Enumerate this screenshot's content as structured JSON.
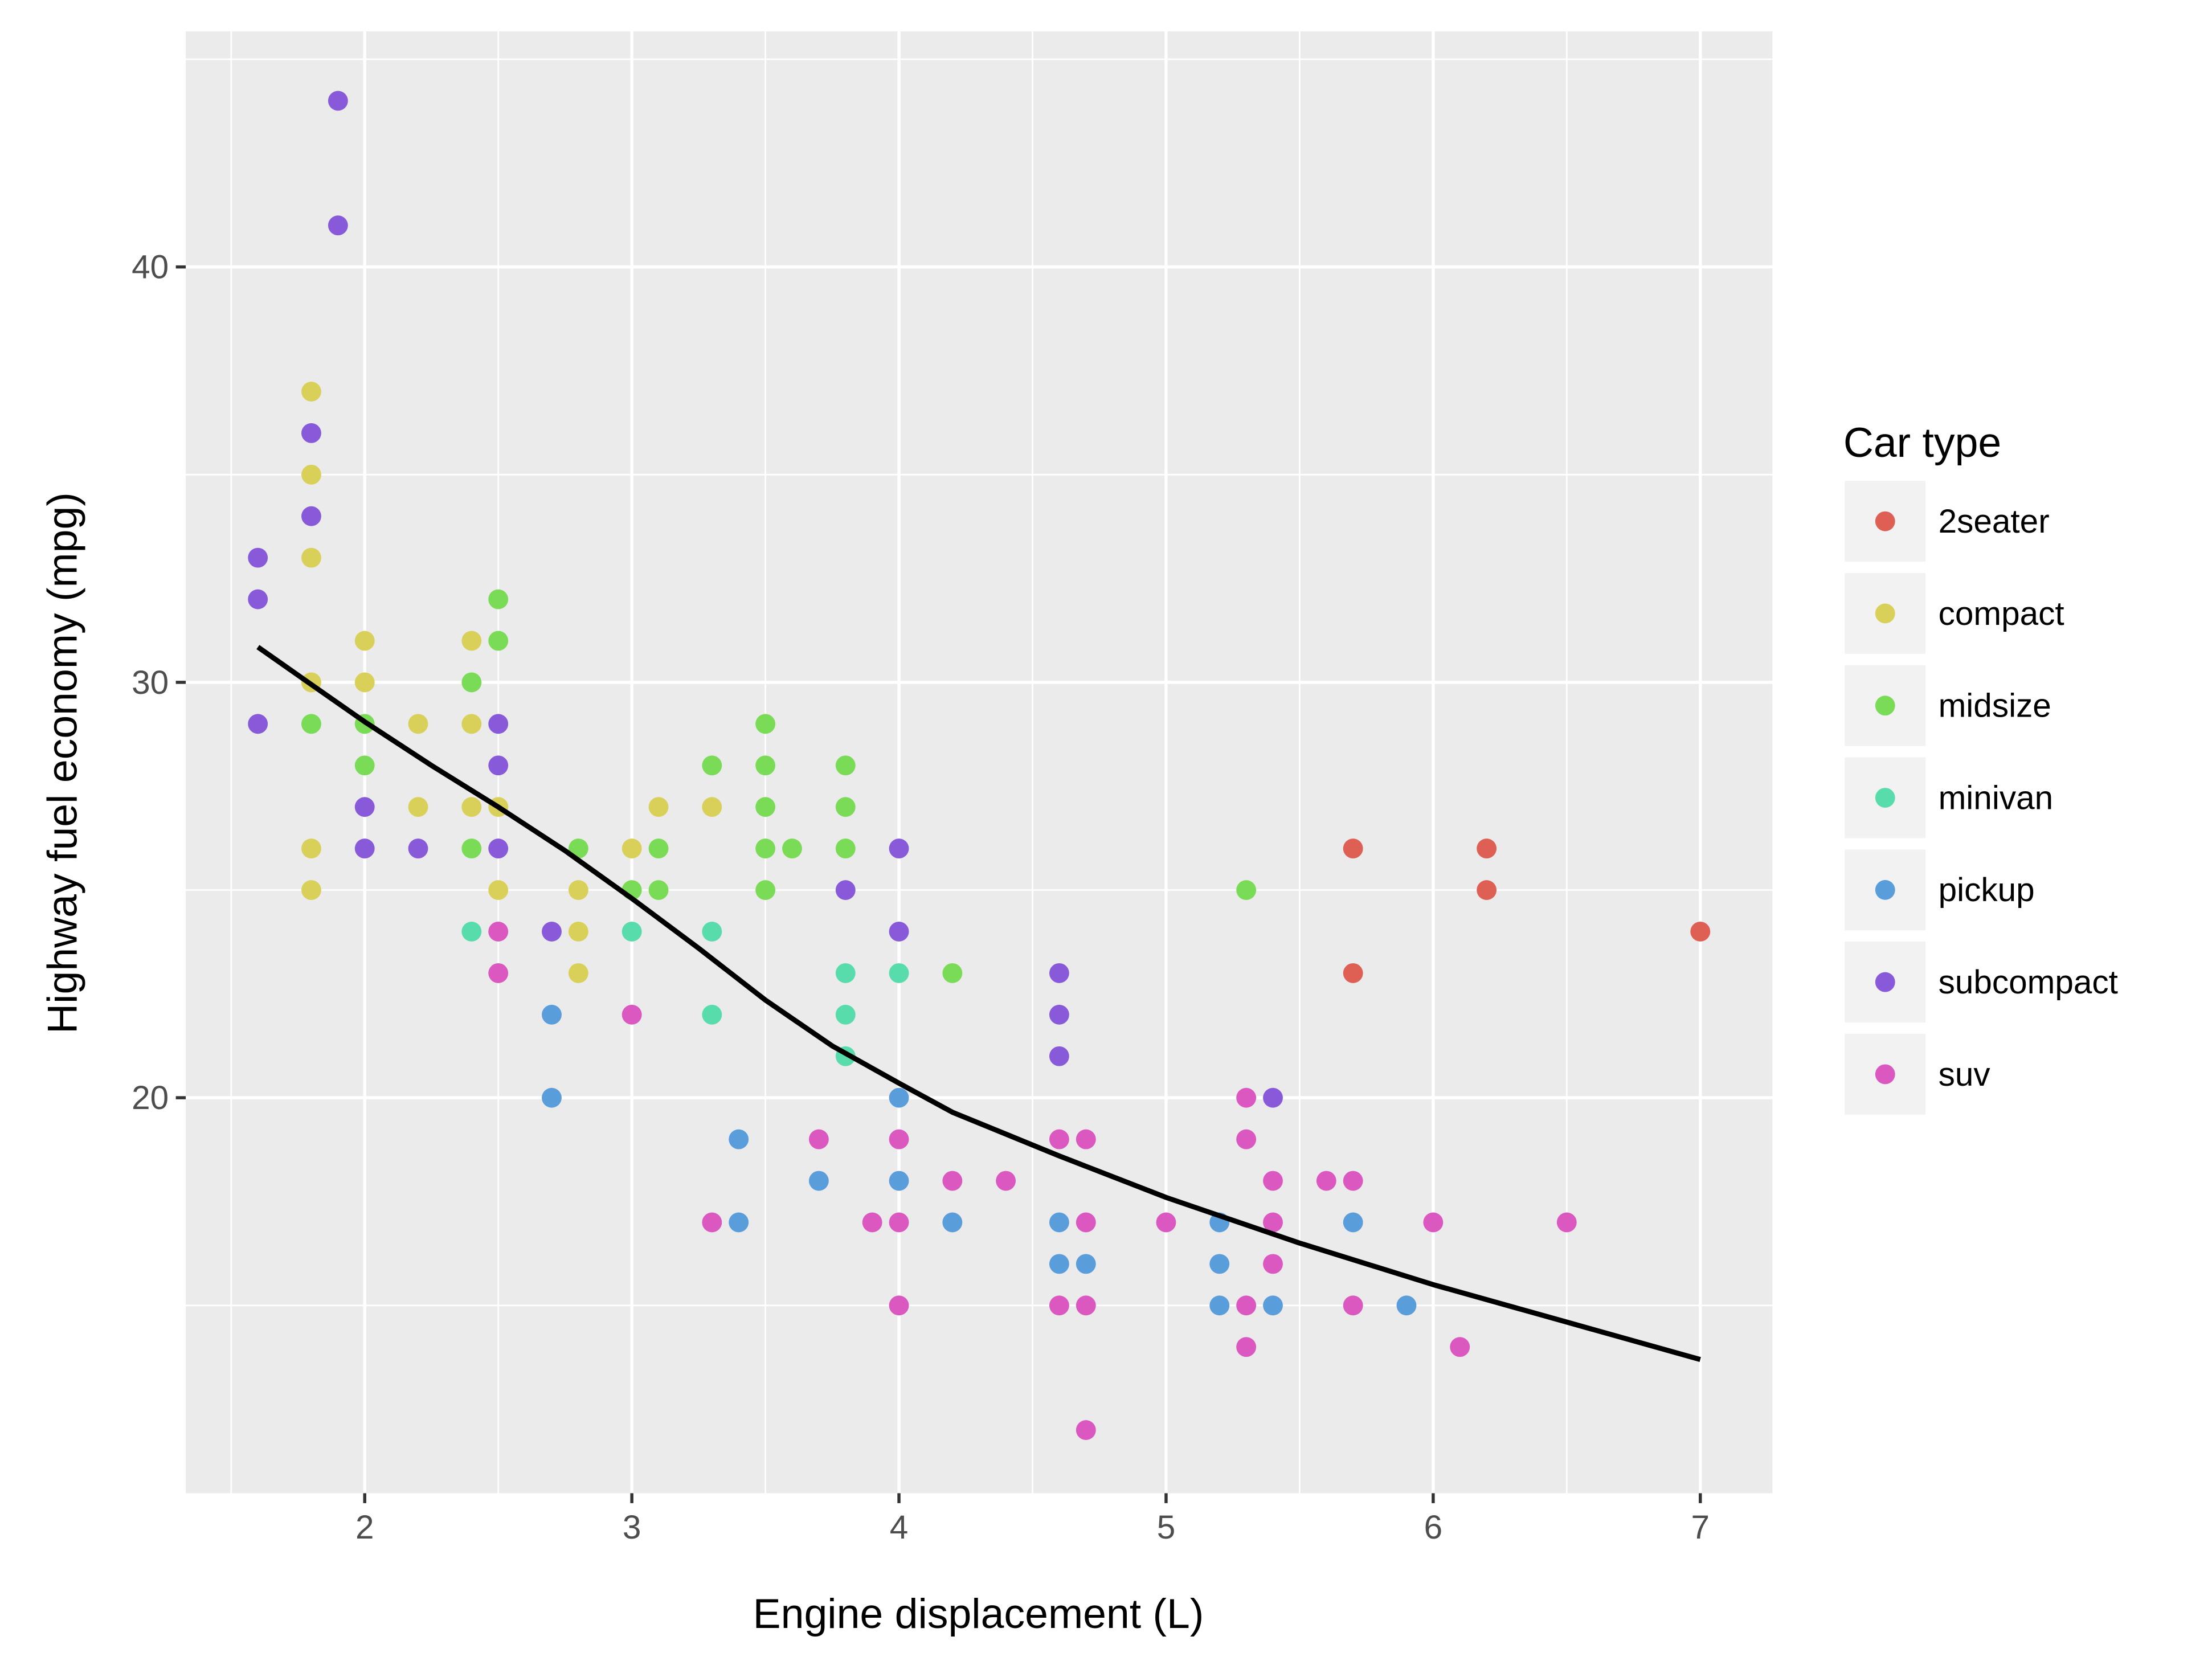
{
  "chart_data": {
    "type": "scatter",
    "title": "",
    "xlabel": "Engine displacement (L)",
    "ylabel": "Highway fuel economy (mpg)",
    "xlim": [
      1.33,
      7.27
    ],
    "ylim": [
      10.48,
      45.67
    ],
    "x_ticks": [
      2,
      3,
      4,
      5,
      6,
      7
    ],
    "y_ticks": [
      20,
      30,
      40
    ],
    "x_tick_labels": [
      "2",
      "3",
      "4",
      "5",
      "6",
      "7"
    ],
    "y_tick_labels": [
      "20",
      "30",
      "40"
    ],
    "grid": true,
    "legend": {
      "title": "Car type",
      "placement": "right",
      "entries": [
        "2seater",
        "compact",
        "midsize",
        "minivan",
        "pickup",
        "subcompact",
        "suv"
      ]
    },
    "colors": {
      "2seater": "#DE6055",
      "compact": "#D9D05A",
      "midsize": "#79DB56",
      "minivan": "#58DCAB",
      "pickup": "#5A9DDB",
      "subcompact": "#885AD9",
      "suv": "#DA58C0"
    },
    "series": [
      {
        "name": "2seater",
        "points": [
          [
            5.7,
            26
          ],
          [
            5.7,
            23
          ],
          [
            6.2,
            26
          ],
          [
            6.2,
            25
          ],
          [
            7.0,
            24
          ]
        ]
      },
      {
        "name": "compact",
        "points": [
          [
            1.8,
            37
          ],
          [
            1.8,
            35
          ],
          [
            1.8,
            33
          ],
          [
            1.8,
            30
          ],
          [
            2.0,
            31
          ],
          [
            2.0,
            30
          ],
          [
            2.2,
            29
          ],
          [
            1.8,
            26
          ],
          [
            1.8,
            25
          ],
          [
            2.2,
            27
          ],
          [
            2.4,
            31
          ],
          [
            2.4,
            29
          ],
          [
            2.4,
            27
          ],
          [
            2.5,
            27
          ],
          [
            2.5,
            25
          ],
          [
            2.8,
            25
          ],
          [
            2.8,
            24
          ],
          [
            2.8,
            23
          ],
          [
            3.0,
            26
          ],
          [
            3.1,
            27
          ],
          [
            3.3,
            27
          ]
        ]
      },
      {
        "name": "midsize",
        "points": [
          [
            1.8,
            29
          ],
          [
            2.0,
            29
          ],
          [
            2.0,
            28
          ],
          [
            2.4,
            30
          ],
          [
            2.5,
            32
          ],
          [
            2.5,
            31
          ],
          [
            2.4,
            26
          ],
          [
            2.8,
            26
          ],
          [
            3.0,
            25
          ],
          [
            3.1,
            26
          ],
          [
            3.1,
            25
          ],
          [
            3.3,
            28
          ],
          [
            3.5,
            29
          ],
          [
            3.5,
            28
          ],
          [
            3.5,
            27
          ],
          [
            3.5,
            26
          ],
          [
            3.5,
            25
          ],
          [
            3.6,
            26
          ],
          [
            3.8,
            28
          ],
          [
            3.8,
            27
          ],
          [
            3.8,
            26
          ],
          [
            4.2,
            23
          ],
          [
            5.3,
            25
          ]
        ]
      },
      {
        "name": "minivan",
        "points": [
          [
            2.4,
            24
          ],
          [
            3.0,
            24
          ],
          [
            3.3,
            24
          ],
          [
            3.3,
            22
          ],
          [
            3.8,
            23
          ],
          [
            3.8,
            22
          ],
          [
            3.8,
            21
          ],
          [
            4.0,
            23
          ]
        ]
      },
      {
        "name": "pickup",
        "points": [
          [
            2.7,
            22
          ],
          [
            2.7,
            20
          ],
          [
            3.4,
            19
          ],
          [
            3.4,
            17
          ],
          [
            3.7,
            18
          ],
          [
            4.0,
            20
          ],
          [
            4.0,
            18
          ],
          [
            4.2,
            17
          ],
          [
            4.6,
            17
          ],
          [
            4.6,
            16
          ],
          [
            4.7,
            16
          ],
          [
            5.2,
            17
          ],
          [
            5.2,
            16
          ],
          [
            5.2,
            15
          ],
          [
            5.4,
            15
          ],
          [
            5.7,
            17
          ],
          [
            5.9,
            15
          ]
        ]
      },
      {
        "name": "subcompact",
        "points": [
          [
            1.9,
            44
          ],
          [
            1.9,
            41
          ],
          [
            1.8,
            36
          ],
          [
            1.8,
            34
          ],
          [
            1.6,
            33
          ],
          [
            1.6,
            32
          ],
          [
            1.6,
            29
          ],
          [
            2.5,
            29
          ],
          [
            2.5,
            28
          ],
          [
            2.0,
            27
          ],
          [
            2.0,
            26
          ],
          [
            2.2,
            26
          ],
          [
            2.5,
            26
          ],
          [
            2.7,
            24
          ],
          [
            4.0,
            26
          ],
          [
            3.8,
            25
          ],
          [
            4.0,
            24
          ],
          [
            4.6,
            23
          ],
          [
            4.6,
            22
          ],
          [
            4.6,
            21
          ],
          [
            5.4,
            20
          ]
        ]
      },
      {
        "name": "suv",
        "points": [
          [
            2.5,
            24
          ],
          [
            2.5,
            23
          ],
          [
            3.0,
            22
          ],
          [
            3.3,
            17
          ],
          [
            3.7,
            19
          ],
          [
            3.9,
            17
          ],
          [
            4.0,
            19
          ],
          [
            4.0,
            17
          ],
          [
            4.0,
            15
          ],
          [
            4.2,
            18
          ],
          [
            4.4,
            18
          ],
          [
            4.6,
            19
          ],
          [
            4.7,
            19
          ],
          [
            4.7,
            17
          ],
          [
            4.6,
            15
          ],
          [
            4.7,
            15
          ],
          [
            4.7,
            12
          ],
          [
            5.0,
            17
          ],
          [
            5.3,
            20
          ],
          [
            5.3,
            19
          ],
          [
            5.4,
            18
          ],
          [
            5.4,
            17
          ],
          [
            5.4,
            16
          ],
          [
            5.3,
            15
          ],
          [
            5.3,
            14
          ],
          [
            5.6,
            18
          ],
          [
            5.7,
            18
          ],
          [
            5.7,
            15
          ],
          [
            6.0,
            17
          ],
          [
            6.1,
            14
          ],
          [
            6.5,
            17
          ]
        ]
      }
    ],
    "smooth": {
      "name": "loess fit",
      "color": "#000000",
      "points": [
        [
          1.6,
          30.85
        ],
        [
          1.8,
          29.95
        ],
        [
          2.0,
          29.05
        ],
        [
          2.25,
          28.0
        ],
        [
          2.5,
          27.0
        ],
        [
          2.75,
          25.95
        ],
        [
          3.0,
          24.8
        ],
        [
          3.25,
          23.6
        ],
        [
          3.5,
          22.35
        ],
        [
          3.75,
          21.25
        ],
        [
          4.0,
          20.35
        ],
        [
          4.2,
          19.65
        ],
        [
          4.6,
          18.6
        ],
        [
          5.0,
          17.6
        ],
        [
          5.5,
          16.5
        ],
        [
          6.0,
          15.5
        ],
        [
          6.5,
          14.6
        ],
        [
          7.0,
          13.7
        ]
      ]
    }
  }
}
